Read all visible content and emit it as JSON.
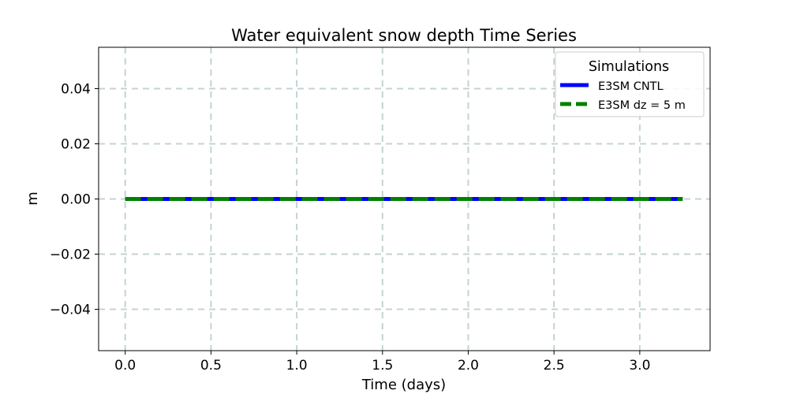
{
  "chart_data": {
    "type": "line",
    "title": "Water equivalent snow depth Time Series",
    "xlabel": "Time (days)",
    "ylabel": "m",
    "xlim": [
      -0.155,
      3.41
    ],
    "ylim": [
      -0.055,
      0.055
    ],
    "xticks": [
      0.0,
      0.5,
      1.0,
      1.5,
      2.0,
      2.5,
      3.0
    ],
    "xtick_labels": [
      "0.0",
      "0.5",
      "1.0",
      "1.5",
      "2.0",
      "2.5",
      "3.0"
    ],
    "yticks": [
      -0.04,
      -0.02,
      0.0,
      0.02,
      0.04
    ],
    "ytick_labels": [
      "−0.04",
      "−0.02",
      "0.00",
      "0.02",
      "0.04"
    ],
    "grid": true,
    "legend": {
      "title": "Simulations",
      "placement": "top-right"
    },
    "series": [
      {
        "name": "E3SM CNTL",
        "color": "#0000ff",
        "style": "solid",
        "x": [
          0.0,
          3.25
        ],
        "y": [
          0.0,
          0.0
        ]
      },
      {
        "name": "E3SM dz = 5 m",
        "color": "#008000",
        "style": "dashed",
        "x": [
          0.0,
          3.25
        ],
        "y": [
          0.0,
          0.0
        ]
      }
    ]
  }
}
